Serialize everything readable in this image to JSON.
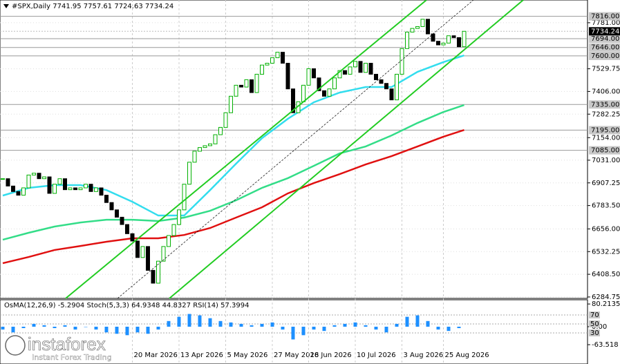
{
  "chart_data": {
    "type": "candlestick",
    "title": "#SPX,Daily  7741.95 7757.61 7724.63 7734.24",
    "categories": [
      null,
      null,
      null,
      null,
      null,
      null,
      null,
      null,
      null,
      null,
      null,
      null,
      null,
      null,
      null,
      null,
      null,
      null,
      null,
      null,
      null,
      null,
      null,
      null,
      null,
      "20 Mar 2026",
      null,
      null,
      null,
      null,
      null,
      null,
      null,
      null,
      "13 Apr 2026",
      null,
      null,
      null,
      null,
      null,
      null,
      null,
      null,
      "5 May 2026",
      null,
      null,
      null,
      null,
      null,
      null,
      null,
      null,
      "27 May 2026",
      null,
      null,
      null,
      null,
      null,
      null,
      "18 Jun 2026",
      null,
      null,
      null,
      null,
      null,
      null,
      null,
      null,
      "10 Jul 2026",
      null,
      null,
      null,
      null,
      null,
      null,
      null,
      null,
      "3 Aug 2026",
      null,
      null,
      null,
      null,
      null,
      null,
      null,
      "25 Aug 2026",
      null,
      null,
      null,
      null
    ],
    "close": [
      6930,
      6890,
      6860,
      6840,
      6880,
      6950,
      6960,
      6930,
      6940,
      6850,
      6900,
      6930,
      6870,
      6880,
      6870,
      6880,
      6900,
      6860,
      6880,
      6840,
      6800,
      6760,
      6720,
      6680,
      6630,
      6590,
      6500,
      6560,
      6430,
      6360,
      6480,
      6560,
      6620,
      6680,
      6760,
      6900,
      7020,
      7080,
      7100,
      7110,
      7120,
      7170,
      7210,
      7290,
      7380,
      7440,
      7430,
      7470,
      7400,
      7500,
      7550,
      7560,
      7590,
      7620,
      7560,
      7420,
      7290,
      7350,
      7440,
      7530,
      7480,
      7410,
      7380,
      7420,
      7480,
      7520,
      7500,
      7540,
      7570,
      7510,
      7560,
      7500,
      7470,
      7450,
      7420,
      7360,
      7500,
      7640,
      7730,
      7750,
      7760,
      7800,
      7720,
      7680,
      7660,
      7670,
      7710,
      7700,
      7650,
      7734.24
    ],
    "up_color": "#00b000",
    "down_color": "#000000",
    "ylim": [
      6277,
      7905
    ],
    "yticks": [
      {
        "value": 7781,
        "label": "7781.00"
      },
      {
        "value": 7529.75,
        "label": "7529.75"
      },
      {
        "value": 7406,
        "label": "7406.00"
      },
      {
        "value": 7282.25,
        "label": "7282.25"
      },
      {
        "value": 7154,
        "label": "7154.00"
      },
      {
        "value": 7031,
        "label": "7031.00"
      },
      {
        "value": 6907.25,
        "label": "6907.25"
      },
      {
        "value": 6783.5,
        "label": "6783.50"
      },
      {
        "value": 6656,
        "label": "6656.00"
      },
      {
        "value": 6532.25,
        "label": "6532.25"
      },
      {
        "value": 6408.5,
        "label": "6408.50"
      },
      {
        "value": 6284.75,
        "label": "6284.75"
      }
    ],
    "grid": true,
    "levels": [
      {
        "value": 7816,
        "label": "7816.00"
      },
      {
        "value": 7694,
        "label": "7694.00"
      },
      {
        "value": 7646,
        "label": "7646.00"
      },
      {
        "value": 7600,
        "label": "7600.00"
      },
      {
        "value": 7335,
        "label": "7335.00"
      },
      {
        "value": 7195,
        "label": "7195.00"
      },
      {
        "value": 7085,
        "label": "7085.00"
      }
    ],
    "last_price": 7734.24,
    "moving_averages": [
      {
        "color": "#33ddee",
        "x": [
          0,
          5,
          10,
          15,
          20,
          25,
          30,
          35,
          40,
          45,
          50,
          55,
          60,
          65,
          70,
          75,
          80,
          85,
          89
        ],
        "values": [
          6838,
          6880,
          6895,
          6895,
          6868,
          6804,
          6729,
          6729,
          6868,
          7012,
          7151,
          7257,
          7347,
          7400,
          7430,
          7430,
          7513,
          7566,
          7603
        ]
      },
      {
        "color": "#33dd88",
        "x": [
          0,
          5,
          10,
          15,
          20,
          25,
          30,
          35,
          40,
          45,
          50,
          55,
          60,
          65,
          70,
          75,
          80,
          85,
          89
        ],
        "values": [
          6597,
          6635,
          6669,
          6691,
          6706,
          6706,
          6699,
          6718,
          6755,
          6812,
          6880,
          6933,
          7000,
          7068,
          7106,
          7166,
          7234,
          7294,
          7332
        ]
      },
      {
        "color": "#e01010",
        "x": [
          0,
          5,
          10,
          15,
          20,
          25,
          30,
          35,
          40,
          45,
          50,
          55,
          60,
          65,
          70,
          75,
          80,
          85,
          89
        ],
        "values": [
          6469,
          6503,
          6541,
          6563,
          6586,
          6605,
          6605,
          6623,
          6661,
          6718,
          6774,
          6850,
          6906,
          6955,
          7008,
          7053,
          7106,
          7159,
          7196
        ]
      }
    ],
    "indicator": {
      "label": "OsMA(12,26,9) -5.2904 Stoch(5,3,3) 64.9348 44.8327 RSI(14) 57.3994",
      "osma_ticks": [
        80.2135,
        {
          "value": 0,
          "label": "0.00"
        },
        -63.518
      ],
      "stoch_ticks": [
        70,
        50,
        30
      ],
      "osma_color": "#1e90ff",
      "osma_x": [
        0,
        2,
        4,
        6,
        8,
        10,
        12,
        14,
        16,
        18,
        20,
        22,
        24,
        26,
        28,
        30,
        32,
        34,
        36,
        38,
        40,
        42,
        44,
        46,
        48,
        50,
        52,
        54,
        56,
        58,
        60,
        62,
        64,
        66,
        68,
        70,
        72,
        74,
        76,
        78,
        80,
        82,
        84,
        86,
        88
      ],
      "osma": [
        -10,
        -20,
        -5,
        10,
        5,
        -5,
        5,
        -10,
        0,
        -10,
        -20,
        -25,
        -30,
        -20,
        -25,
        -10,
        20,
        35,
        45,
        40,
        30,
        20,
        15,
        10,
        5,
        10,
        15,
        -10,
        -45,
        -30,
        -10,
        -15,
        5,
        10,
        15,
        5,
        -10,
        -20,
        10,
        35,
        40,
        20,
        -10,
        -15,
        -5
      ]
    }
  },
  "logo": {
    "name": "instaforex",
    "tagline": "Instant Forex Trading"
  }
}
